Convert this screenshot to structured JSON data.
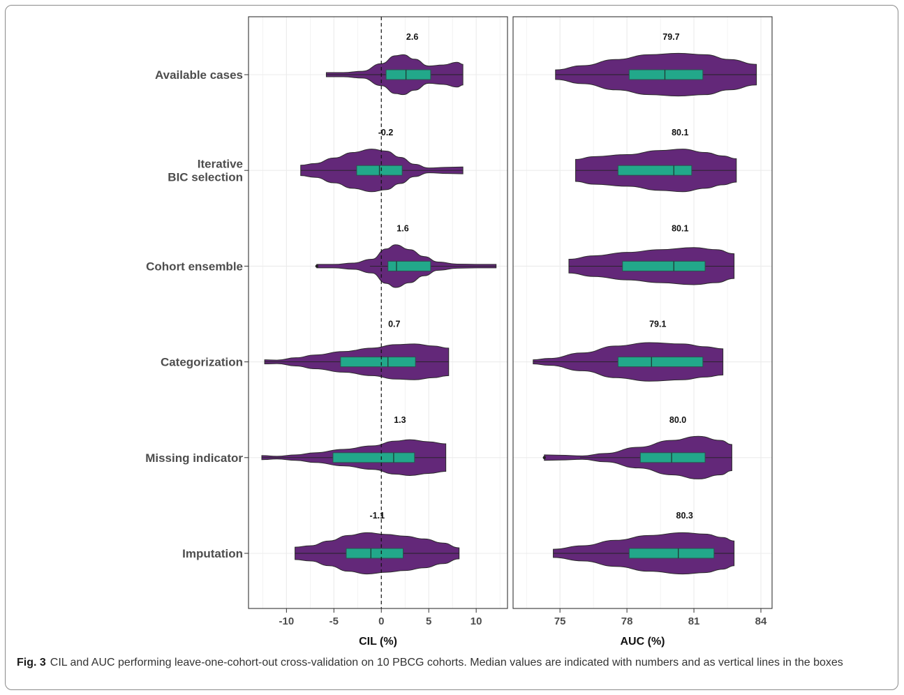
{
  "chart_data": {
    "type": "violin",
    "categories": [
      "Available cases",
      "Iterative\nBIC selection",
      "Cohort ensemble",
      "Categorization",
      "Missing indicator",
      "Imputation"
    ],
    "colors": {
      "violin": "#632879",
      "box": "#22a88a",
      "outline": "#2b2b2b",
      "grid": "#ebebeb",
      "reference_line": "#111111"
    },
    "panels": [
      {
        "xlabel": "CIL (%)",
        "xlim": [
          -14,
          13.3
        ],
        "ticks": [
          -10,
          -5,
          0,
          5,
          10
        ],
        "tick_labels": [
          "-10",
          "-5",
          "0",
          "5",
          "10"
        ],
        "reference_line": 0,
        "series": [
          {
            "category": "Available cases",
            "median_label": "2.6",
            "median": 2.6,
            "q1": 0.5,
            "q3": 5.2,
            "whisker_low": -5.8,
            "whisker_high": 8.6,
            "min": -5.8,
            "max": 8.6,
            "density": [
              [
                -5.8,
                0.06
              ],
              [
                -4,
                0.06
              ],
              [
                -2,
                0.1
              ],
              [
                0,
                0.32
              ],
              [
                1.5,
                0.55
              ],
              [
                2.3,
                0.58
              ],
              [
                3.5,
                0.45
              ],
              [
                5,
                0.25
              ],
              [
                6.5,
                0.28
              ],
              [
                8,
                0.36
              ],
              [
                8.6,
                0.3
              ]
            ]
          },
          {
            "category": "Iterative\nBIC selection",
            "median_label": "-0.2",
            "median": -0.2,
            "q1": -2.6,
            "q3": 2.2,
            "whisker_low": -8.5,
            "whisker_high": 8.6,
            "min": -8.5,
            "max": 8.6,
            "density": [
              [
                -8.5,
                0.15
              ],
              [
                -7,
                0.2
              ],
              [
                -5,
                0.36
              ],
              [
                -3,
                0.52
              ],
              [
                -1,
                0.62
              ],
              [
                0.5,
                0.56
              ],
              [
                2,
                0.38
              ],
              [
                3.5,
                0.18
              ],
              [
                5,
                0.07
              ],
              [
                7,
                0.09
              ],
              [
                8.6,
                0.1
              ]
            ]
          },
          {
            "category": "Cohort ensemble",
            "median_label": "1.6",
            "median": 1.6,
            "q1": 0.7,
            "q3": 5.2,
            "whisker_low": -1.2,
            "whisker_high": 12.1,
            "min": -6.8,
            "max": 12.1,
            "outliers": [
              -6.8
            ],
            "density": [
              [
                -6.8,
                0.05
              ],
              [
                -5,
                0.05
              ],
              [
                -3,
                0.09
              ],
              [
                -1,
                0.2
              ],
              [
                0.5,
                0.5
              ],
              [
                1.5,
                0.62
              ],
              [
                3,
                0.48
              ],
              [
                4.5,
                0.28
              ],
              [
                6,
                0.12
              ],
              [
                8,
                0.06
              ],
              [
                10,
                0.05
              ],
              [
                12.1,
                0.05
              ]
            ]
          },
          {
            "category": "Categorization",
            "median_label": "0.7",
            "median": 0.7,
            "q1": -4.3,
            "q3": 3.6,
            "whisker_low": -12.3,
            "whisker_high": 7.1,
            "min": -12.3,
            "max": 7.1,
            "density": [
              [
                -12.3,
                0.06
              ],
              [
                -11,
                0.05
              ],
              [
                -9,
                0.12
              ],
              [
                -7,
                0.2
              ],
              [
                -4,
                0.3
              ],
              [
                -1,
                0.4
              ],
              [
                1.5,
                0.5
              ],
              [
                3.5,
                0.52
              ],
              [
                5.5,
                0.46
              ],
              [
                7.1,
                0.4
              ]
            ]
          },
          {
            "category": "Missing indicator",
            "median_label": "1.3",
            "median": 1.3,
            "q1": -5.1,
            "q3": 3.5,
            "whisker_low": -12.6,
            "whisker_high": 6.8,
            "min": -12.6,
            "max": 6.8,
            "density": [
              [
                -12.6,
                0.06
              ],
              [
                -11,
                0.04
              ],
              [
                -9,
                0.08
              ],
              [
                -7,
                0.14
              ],
              [
                -4,
                0.24
              ],
              [
                -1,
                0.34
              ],
              [
                1.5,
                0.48
              ],
              [
                3,
                0.52
              ],
              [
                5,
                0.46
              ],
              [
                6.8,
                0.4
              ]
            ]
          },
          {
            "category": "Imputation",
            "median_label": "-1.1",
            "median": -1.1,
            "q1": -3.7,
            "q3": 2.3,
            "whisker_low": -9.1,
            "whisker_high": 8.2,
            "min": -9.1,
            "max": 8.2,
            "density": [
              [
                -9.1,
                0.18
              ],
              [
                -7.5,
                0.22
              ],
              [
                -5.5,
                0.36
              ],
              [
                -3.5,
                0.52
              ],
              [
                -1.5,
                0.6
              ],
              [
                0.5,
                0.55
              ],
              [
                2.5,
                0.5
              ],
              [
                4.5,
                0.42
              ],
              [
                6.5,
                0.3
              ],
              [
                8.2,
                0.16
              ]
            ]
          }
        ]
      },
      {
        "xlabel": "AUC (%)",
        "xlim": [
          72.9,
          84.5
        ],
        "ticks": [
          75,
          78,
          81,
          84
        ],
        "tick_labels": [
          "75",
          "78",
          "81",
          "84"
        ],
        "reference_line": null,
        "series": [
          {
            "category": "Available cases",
            "median_label": "79.7",
            "median": 79.7,
            "q1": 78.1,
            "q3": 81.4,
            "whisker_low": 74.8,
            "whisker_high": 83.8,
            "min": 74.8,
            "max": 83.8,
            "density": [
              [
                74.8,
                0.14
              ],
              [
                76,
                0.26
              ],
              [
                77.5,
                0.44
              ],
              [
                79,
                0.58
              ],
              [
                80.3,
                0.62
              ],
              [
                81.5,
                0.58
              ],
              [
                82.6,
                0.44
              ],
              [
                83.8,
                0.3
              ]
            ]
          },
          {
            "category": "Iterative\nBIC selection",
            "median_label": "80.1",
            "median": 80.1,
            "q1": 77.6,
            "q3": 80.9,
            "whisker_low": 75.7,
            "whisker_high": 82.9,
            "min": 75.7,
            "max": 82.9,
            "density": [
              [
                75.7,
                0.32
              ],
              [
                76.5,
                0.4
              ],
              [
                78,
                0.46
              ],
              [
                79.5,
                0.58
              ],
              [
                80.5,
                0.62
              ],
              [
                81.5,
                0.52
              ],
              [
                82.3,
                0.42
              ],
              [
                82.9,
                0.34
              ]
            ]
          },
          {
            "category": "Cohort ensemble",
            "median_label": "80.1",
            "median": 80.1,
            "q1": 77.8,
            "q3": 81.5,
            "whisker_low": 75.4,
            "whisker_high": 82.8,
            "min": 75.4,
            "max": 82.8,
            "density": [
              [
                75.4,
                0.2
              ],
              [
                76.5,
                0.3
              ],
              [
                78,
                0.4
              ],
              [
                79.5,
                0.48
              ],
              [
                81,
                0.54
              ],
              [
                82,
                0.48
              ],
              [
                82.8,
                0.36
              ]
            ]
          },
          {
            "category": "Categorization",
            "median_label": "79.1",
            "median": 79.1,
            "q1": 77.6,
            "q3": 81.4,
            "whisker_low": 73.8,
            "whisker_high": 82.3,
            "min": 73.8,
            "max": 82.3,
            "density": [
              [
                73.8,
                0.06
              ],
              [
                74.5,
                0.1
              ],
              [
                76,
                0.26
              ],
              [
                77.5,
                0.46
              ],
              [
                79,
                0.56
              ],
              [
                80.5,
                0.52
              ],
              [
                81.5,
                0.44
              ],
              [
                82.3,
                0.38
              ]
            ]
          },
          {
            "category": "Missing indicator",
            "median_label": "80.0",
            "median": 80.0,
            "q1": 78.6,
            "q3": 81.5,
            "whisker_low": 75.9,
            "whisker_high": 82.7,
            "min": 74.3,
            "max": 82.7,
            "outliers": [
              74.3
            ],
            "density": [
              [
                74.3,
                0.08
              ],
              [
                75,
                0.07
              ],
              [
                76,
                0.05
              ],
              [
                77,
                0.12
              ],
              [
                78.5,
                0.3
              ],
              [
                80,
                0.5
              ],
              [
                81.2,
                0.62
              ],
              [
                82.2,
                0.5
              ],
              [
                82.7,
                0.38
              ]
            ]
          },
          {
            "category": "Imputation",
            "median_label": "80.3",
            "median": 80.3,
            "q1": 78.1,
            "q3": 81.9,
            "whisker_low": 74.7,
            "whisker_high": 82.8,
            "min": 74.7,
            "max": 82.8,
            "density": [
              [
                74.7,
                0.12
              ],
              [
                76,
                0.22
              ],
              [
                77.5,
                0.38
              ],
              [
                79,
                0.52
              ],
              [
                80.5,
                0.6
              ],
              [
                81.5,
                0.56
              ],
              [
                82.3,
                0.46
              ],
              [
                82.8,
                0.36
              ]
            ]
          }
        ]
      }
    ]
  },
  "caption": {
    "figure_number": "Fig. 3",
    "text": "CIL and AUC performing leave-one-cohort-out cross-validation on 10 PBCG cohorts. Median values are indicated with numbers and as vertical lines in the boxes"
  }
}
